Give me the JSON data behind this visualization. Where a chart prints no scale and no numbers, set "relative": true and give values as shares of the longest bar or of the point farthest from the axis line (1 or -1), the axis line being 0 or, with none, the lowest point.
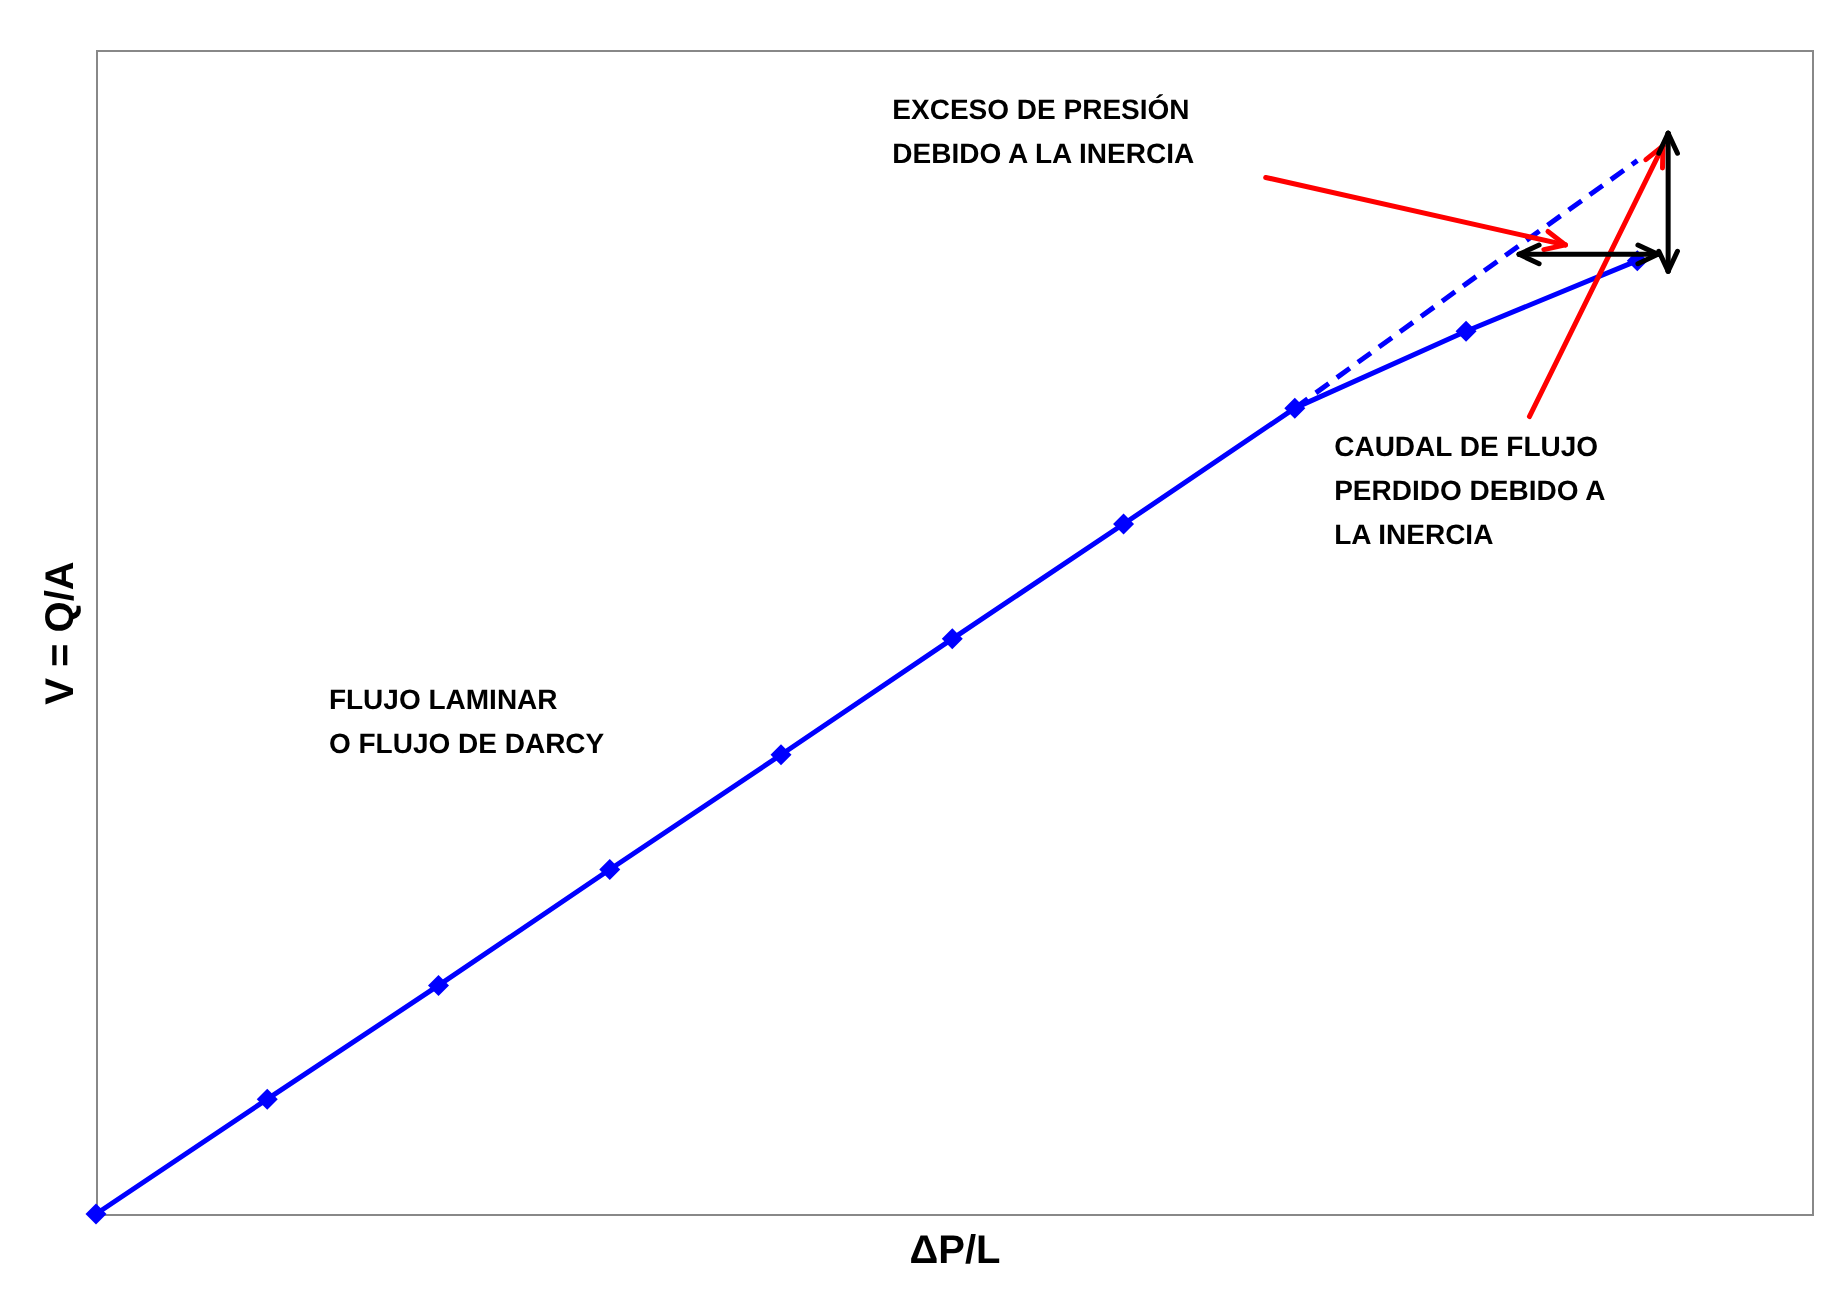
{
  "chart_data": {
    "type": "line",
    "relative": true,
    "xlabel": "ΔP/L",
    "ylabel": "V = Q/A",
    "tick_labels": false,
    "grid": false,
    "categories": [
      null,
      null,
      null,
      null,
      null,
      null,
      null,
      null,
      null,
      null
    ],
    "series": [
      {
        "color": "#0000ff",
        "marker": "diamond",
        "line_style": "solid",
        "values": [
          0,
          0.109,
          0.217,
          0.327,
          0.436,
          0.546,
          0.655,
          0.765,
          0.838,
          0.905
        ]
      },
      {
        "color": "#0000ff",
        "marker": "none",
        "line_style": "dashed",
        "values": [
          null,
          null,
          null,
          null,
          null,
          null,
          null,
          0.765,
          0.883,
          1.0
        ]
      }
    ],
    "annotations": [
      "EXCESO DE PRESIÓN\nDEBIDO A LA INERCIA",
      "CAUDAL DE FLUJO\nPERDIDO DEBIDO A\nLA INERCIA",
      "FLUJO LAMINAR\nO FLUJO DE DARCY"
    ]
  }
}
